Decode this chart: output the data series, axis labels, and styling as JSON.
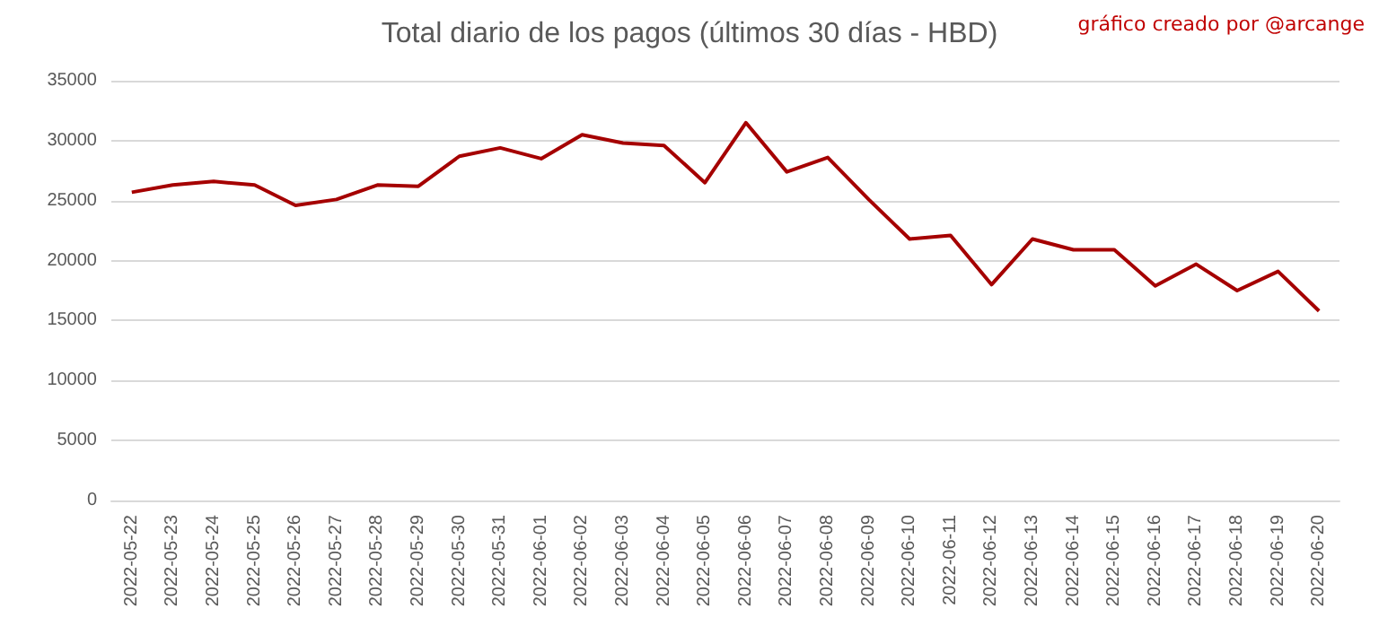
{
  "chart_data": {
    "type": "line",
    "title": "Total diario de los pagos (últimos 30 días - HBD)",
    "annotations": [
      "gráfico creado por @arcange"
    ],
    "categories": [
      "2022-05-22",
      "2022-05-23",
      "2022-05-24",
      "2022-05-25",
      "2022-05-26",
      "2022-05-27",
      "2022-05-28",
      "2022-05-29",
      "2022-05-30",
      "2022-05-31",
      "2022-06-01",
      "2022-06-02",
      "2022-06-03",
      "2022-06-04",
      "2022-06-05",
      "2022-06-06",
      "2022-06-07",
      "2022-06-08",
      "2022-06-09",
      "2022-06-10",
      "2022-06-11",
      "2022-06-12",
      "2022-06-13",
      "2022-06-14",
      "2022-06-15",
      "2022-06-16",
      "2022-06-17",
      "2022-06-18",
      "2022-06-19",
      "2022-06-20"
    ],
    "series": [
      {
        "color": "#a50000",
        "values": [
          25700,
          26300,
          26600,
          26300,
          24600,
          25100,
          26300,
          26200,
          28700,
          29400,
          28500,
          30500,
          29800,
          29600,
          26500,
          31500,
          27400,
          28600,
          25100,
          21800,
          22100,
          18000,
          21800,
          20900,
          20900,
          17900,
          19700,
          17500,
          19100,
          15800
        ]
      }
    ],
    "ylim": [
      0,
      35000
    ],
    "yticks": [
      0,
      5000,
      10000,
      15000,
      20000,
      25000,
      30000,
      35000
    ],
    "grid": "y",
    "marker": "none",
    "line_style": "solid"
  }
}
